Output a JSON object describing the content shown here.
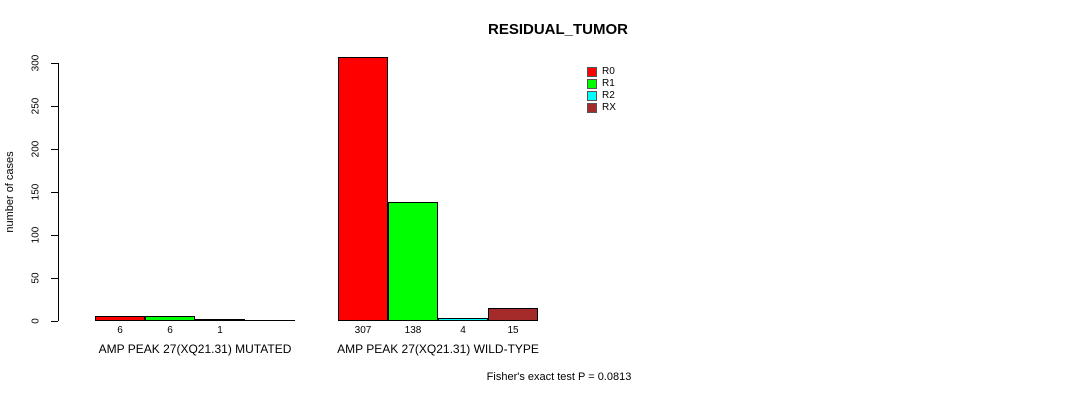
{
  "title": "RESIDUAL_TUMOR",
  "chart_data": {
    "type": "bar",
    "title": "RESIDUAL_TUMOR",
    "xlabel": "",
    "ylabel": "number of cases",
    "ylim": [
      0,
      300
    ],
    "yticks": [
      0,
      50,
      100,
      150,
      200,
      250,
      300
    ],
    "grid": false,
    "legend_position": "top-right",
    "series": [
      {
        "name": "R0",
        "color": "#ff0000"
      },
      {
        "name": "R1",
        "color": "#00ff00"
      },
      {
        "name": "R2",
        "color": "#00ffff"
      },
      {
        "name": "RX",
        "color": "#a52a2a"
      }
    ],
    "groups": [
      {
        "label": "AMP PEAK 27(XQ21.31) MUTATED",
        "values": [
          6,
          6,
          1,
          0
        ],
        "value_labels": [
          "6",
          "6",
          "1",
          ""
        ]
      },
      {
        "label": "AMP PEAK 27(XQ21.31) WILD-TYPE",
        "values": [
          307,
          138,
          4,
          15
        ],
        "value_labels": [
          "307",
          "138",
          "4",
          "15"
        ]
      }
    ],
    "annotation": "Fisher's exact test P = 0.0813"
  }
}
